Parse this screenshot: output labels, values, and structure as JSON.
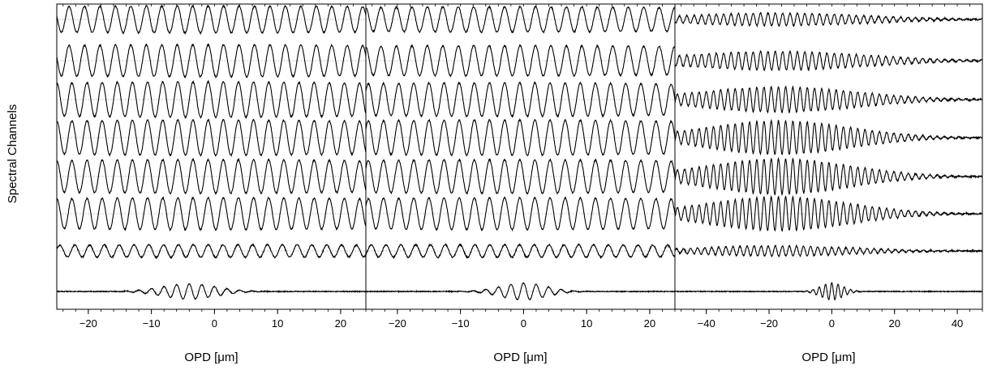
{
  "figure": {
    "ylabel": "Spectral Channels"
  },
  "chart_data": [
    {
      "type": "line",
      "xlabel": "OPD [μm]",
      "xlim": [
        -25,
        24
      ],
      "xticks": [
        -20,
        -10,
        0,
        10,
        20
      ],
      "tick_labels": [
        "−20",
        "−10",
        "0",
        "10",
        "20"
      ],
      "grid": false,
      "channels": [
        {
          "amplitude": 0.32,
          "period": 2.45,
          "envelope_width": 100,
          "center": -1,
          "noise": 0.03
        },
        {
          "amplitude": 0.38,
          "period": 2.45,
          "envelope_width": 100,
          "center": -1,
          "noise": 0.03
        },
        {
          "amplitude": 0.42,
          "period": 2.4,
          "envelope_width": 90,
          "center": -1,
          "noise": 0.03
        },
        {
          "amplitude": 0.42,
          "period": 2.4,
          "envelope_width": 90,
          "center": -1,
          "noise": 0.03
        },
        {
          "amplitude": 0.4,
          "period": 2.4,
          "envelope_width": 90,
          "center": -1,
          "noise": 0.03
        },
        {
          "amplitude": 0.38,
          "period": 2.4,
          "envelope_width": 90,
          "center": -1,
          "noise": 0.03
        },
        {
          "amplitude": 0.15,
          "period": 2.35,
          "envelope_width": 90,
          "center": -1,
          "noise": 0.03
        },
        {
          "amplitude": 0.18,
          "period": 2.0,
          "envelope_width": 6,
          "center": -4,
          "noise": 0.02
        }
      ]
    },
    {
      "type": "line",
      "xlabel": "OPD [μm]",
      "xlim": [
        -25,
        24
      ],
      "xticks": [
        -20,
        -10,
        0,
        10,
        20
      ],
      "tick_labels": [
        "−20",
        "−10",
        "0",
        "10",
        "20"
      ],
      "grid": false,
      "channels": [
        {
          "amplitude": 0.3,
          "period": 2.45,
          "envelope_width": 100,
          "center": -3,
          "noise": 0.03
        },
        {
          "amplitude": 0.36,
          "period": 2.45,
          "envelope_width": 100,
          "center": -3,
          "noise": 0.03
        },
        {
          "amplitude": 0.4,
          "period": 2.4,
          "envelope_width": 90,
          "center": -3,
          "noise": 0.03
        },
        {
          "amplitude": 0.42,
          "period": 2.4,
          "envelope_width": 90,
          "center": -3,
          "noise": 0.03
        },
        {
          "amplitude": 0.4,
          "period": 2.4,
          "envelope_width": 90,
          "center": -3,
          "noise": 0.03
        },
        {
          "amplitude": 0.38,
          "period": 2.4,
          "envelope_width": 90,
          "center": -3,
          "noise": 0.03
        },
        {
          "amplitude": 0.15,
          "period": 2.35,
          "envelope_width": 90,
          "center": -3,
          "noise": 0.03
        },
        {
          "amplitude": 0.2,
          "period": 2.0,
          "envelope_width": 5,
          "center": 0,
          "noise": 0.02
        }
      ]
    },
    {
      "type": "line",
      "xlabel": "OPD [μm]",
      "xlim": [
        -50,
        48
      ],
      "xticks": [
        -40,
        -20,
        0,
        20,
        40
      ],
      "tick_labels": [
        "−40",
        "−20",
        "0",
        "20",
        "40"
      ],
      "grid": false,
      "channels": [
        {
          "amplitude": 0.15,
          "period": 2.35,
          "envelope_width": 40,
          "center": -18,
          "noise": 0.03
        },
        {
          "amplitude": 0.22,
          "period": 2.35,
          "envelope_width": 40,
          "center": -18,
          "noise": 0.03
        },
        {
          "amplitude": 0.3,
          "period": 2.3,
          "envelope_width": 35,
          "center": -17,
          "noise": 0.03
        },
        {
          "amplitude": 0.4,
          "period": 2.3,
          "envelope_width": 32,
          "center": -17,
          "noise": 0.03
        },
        {
          "amplitude": 0.42,
          "period": 2.3,
          "envelope_width": 32,
          "center": -17,
          "noise": 0.03
        },
        {
          "amplitude": 0.4,
          "period": 2.3,
          "envelope_width": 32,
          "center": -17,
          "noise": 0.03
        },
        {
          "amplitude": 0.12,
          "period": 2.25,
          "envelope_width": 35,
          "center": -18,
          "noise": 0.03
        },
        {
          "amplitude": 0.2,
          "period": 2.0,
          "envelope_width": 5,
          "center": 0,
          "noise": 0.02
        }
      ]
    }
  ]
}
